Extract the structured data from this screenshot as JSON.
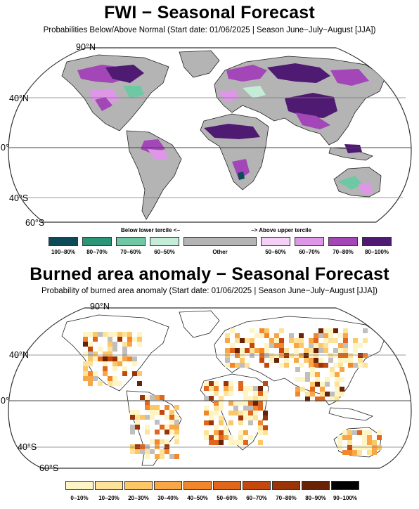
{
  "maps": [
    {
      "id": "fwi",
      "title": "FWI − Seasonal Forecast",
      "subtitle": "Probabilities Below/Above Normal (Start date: 01/06/2025 | Season June−July−August [JJA])",
      "lat_labels": [
        "90°N",
        "40°N",
        "0°",
        "40°S",
        "60°S"
      ],
      "legend": {
        "below_heading": "Below lower tercile <−",
        "above_heading": "−> Above upper tercile",
        "classes": [
          {
            "label": "100−80%",
            "color": "#0b4a5a"
          },
          {
            "label": "80−70%",
            "color": "#2b9577"
          },
          {
            "label": "70−60%",
            "color": "#6ec8a4"
          },
          {
            "label": "60−50%",
            "color": "#c4ecd7"
          },
          {
            "label": "Other",
            "color": "#b4b4b4"
          },
          {
            "label": "50−60%",
            "color": "#f6cff6"
          },
          {
            "label": "60−70%",
            "color": "#de96e6"
          },
          {
            "label": "70−80%",
            "color": "#a346b7"
          },
          {
            "label": "80−100%",
            "color": "#4f1a72"
          }
        ]
      }
    },
    {
      "id": "burned_area",
      "title": "Burned area anomaly − Seasonal Forecast",
      "subtitle": "Probability of burned area anomaly (Start date: 01/06/2025 | Season June−July−August [JJA])",
      "lat_labels": [
        "90°N",
        "40°N",
        "0°",
        "40°S",
        "60°S"
      ],
      "legend": {
        "classes": [
          {
            "label": "0−10%",
            "color": "#fff4c3"
          },
          {
            "label": "10−20%",
            "color": "#fde29a"
          },
          {
            "label": "20−30%",
            "color": "#fcc766"
          },
          {
            "label": "30−40%",
            "color": "#f9a646"
          },
          {
            "label": "40−50%",
            "color": "#f1862b"
          },
          {
            "label": "50−60%",
            "color": "#e0661c"
          },
          {
            "label": "60−70%",
            "color": "#c4480d"
          },
          {
            "label": "70−80%",
            "color": "#9b3508"
          },
          {
            "label": "80−90%",
            "color": "#6a2206"
          },
          {
            "label": "90−100%",
            "color": "#000000"
          }
        ]
      }
    }
  ]
}
